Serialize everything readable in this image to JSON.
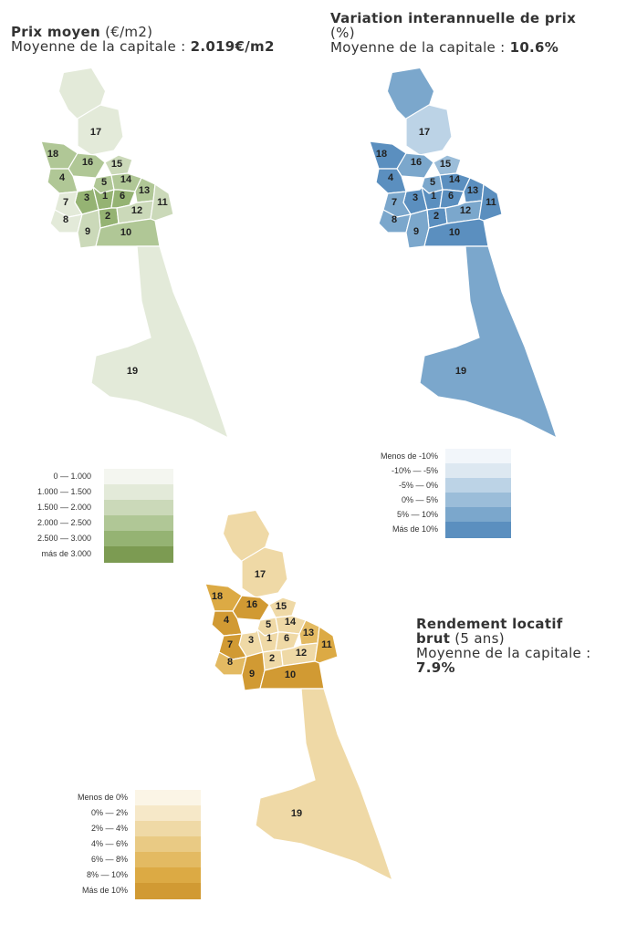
{
  "price": {
    "title_bold": "Prix moyen",
    "title_unit": " (€/m2)",
    "avg_label": "Moyenne de la capitale : ",
    "avg_value": "2.019€/m2",
    "legend": [
      {
        "label": "0   —   1.000",
        "color": "#f4f6f0"
      },
      {
        "label": "1.000   —   1.500",
        "color": "#e3ead9"
      },
      {
        "label": "1.500   —   2.000",
        "color": "#cbd9b9"
      },
      {
        "label": "2.000   —   2.500",
        "color": "#b0c796"
      },
      {
        "label": "2.500   —   3.000",
        "color": "#95b373"
      },
      {
        "label": "más de 3.000",
        "color": "#7c9b52"
      }
    ],
    "districts": {
      "1": "#95b373",
      "2": "#95b373",
      "3": "#95b373",
      "4": "#b0c796",
      "5": "#b0c796",
      "6": "#95b373",
      "7": "#e3ead9",
      "8": "#e3ead9",
      "9": "#cbd9b9",
      "10": "#b0c796",
      "11": "#cbd9b9",
      "12": "#cbd9b9",
      "13": "#b0c796",
      "14": "#b0c796",
      "15": "#cbd9b9",
      "16": "#b0c796",
      "17": "#e3ead9",
      "18": "#b0c796",
      "19": "#e3ead9"
    }
  },
  "variation": {
    "title_bold": "Variation interannuelle de prix",
    "title_unit": "(%)",
    "avg_label": "Moyenne de la capitale : ",
    "avg_value": "10.6%",
    "legend": [
      {
        "label": "Menos de -10%",
        "color": "#f2f6fa"
      },
      {
        "label": "-10%   —   -5%",
        "color": "#dde8f1"
      },
      {
        "label": "-5%   —   0%",
        "color": "#bcd3e6"
      },
      {
        "label": "0%   —   5%",
        "color": "#9bbdd9"
      },
      {
        "label": "5%   —   10%",
        "color": "#7ba7cc"
      },
      {
        "label": "Más de 10%",
        "color": "#5b8fbf"
      }
    ],
    "districts": {
      "1": "#5b8fbf",
      "2": "#5b8fbf",
      "3": "#5b8fbf",
      "4": "#5b8fbf",
      "5": "#7ba7cc",
      "6": "#5b8fbf",
      "7": "#7ba7cc",
      "8": "#7ba7cc",
      "9": "#7ba7cc",
      "10": "#5b8fbf",
      "11": "#5b8fbf",
      "12": "#7ba7cc",
      "13": "#5b8fbf",
      "14": "#5b8fbf",
      "15": "#9bbdd9",
      "16": "#7ba7cc",
      "17": "#bcd3e6",
      "18": "#5b8fbf",
      "19": "#7ba7cc"
    }
  },
  "yield": {
    "title_bold": "Rendement locatif brut",
    "title_unit": " (5 ans)",
    "avg_label": "Moyenne de la capitale : ",
    "avg_value": "7.9%",
    "legend": [
      {
        "label": "Menos de 0%",
        "color": "#fbf5e6"
      },
      {
        "label": "0%   —   2%",
        "color": "#f6e8c8"
      },
      {
        "label": "2%   —   4%",
        "color": "#efd9a6"
      },
      {
        "label": "4%   —   6%",
        "color": "#e9ca84"
      },
      {
        "label": "6%   —   8%",
        "color": "#e3ba62"
      },
      {
        "label": "8%   —   10%",
        "color": "#dcaa44"
      },
      {
        "label": "Más de 10%",
        "color": "#d19a33"
      }
    ],
    "districts": {
      "1": "#efd9a6",
      "2": "#efd9a6",
      "3": "#efd9a6",
      "4": "#d19a33",
      "5": "#efd9a6",
      "6": "#efd9a6",
      "7": "#d19a33",
      "8": "#e3ba62",
      "9": "#d19a33",
      "10": "#d19a33",
      "11": "#dcaa44",
      "12": "#efd9a6",
      "13": "#e3ba62",
      "14": "#efd9a6",
      "15": "#efd9a6",
      "16": "#d19a33",
      "17": "#efd9a6",
      "18": "#dcaa44",
      "19": "#efd9a6"
    }
  }
}
